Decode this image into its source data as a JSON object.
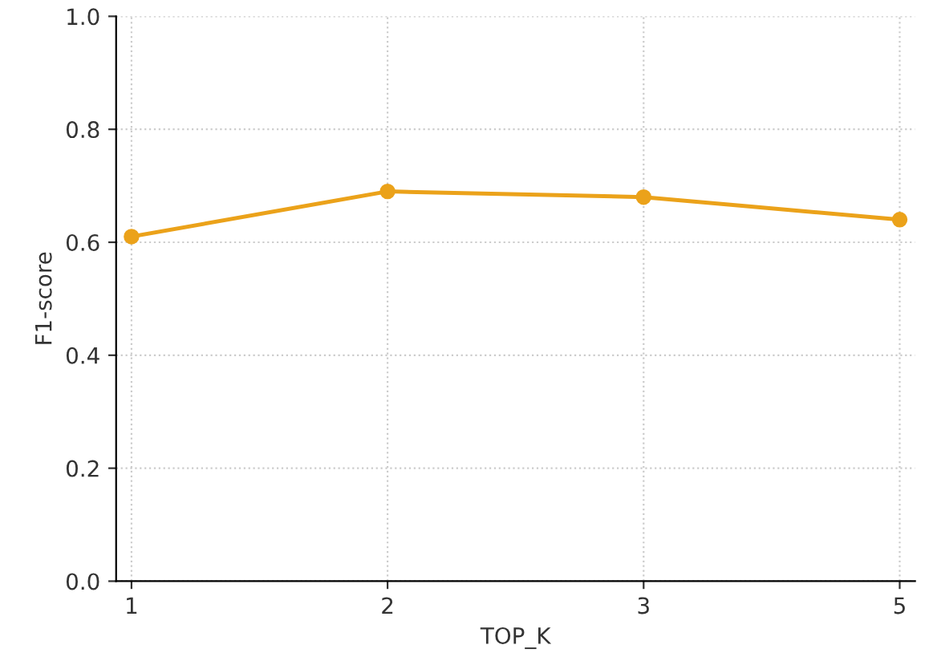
{
  "chart_data": {
    "type": "line",
    "xlabel": "TOP_K",
    "ylabel": "F1-score",
    "categories": [
      "1",
      "2",
      "3",
      "5"
    ],
    "series": [
      {
        "color": "#eba21a",
        "values": [
          0.61,
          0.69,
          0.68,
          0.64
        ]
      }
    ],
    "ylim": [
      0,
      1
    ],
    "yticks": [
      {
        "value": 0,
        "label": "0.0"
      },
      {
        "value": 0.2,
        "label": "0.2"
      },
      {
        "value": 0.4,
        "label": "0.4"
      },
      {
        "value": 0.6,
        "label": "0.6"
      },
      {
        "value": 0.8,
        "label": "0.8"
      },
      {
        "value": 1,
        "label": "1.0"
      }
    ],
    "grid": true,
    "marker": "circle",
    "line_style": "solid"
  }
}
